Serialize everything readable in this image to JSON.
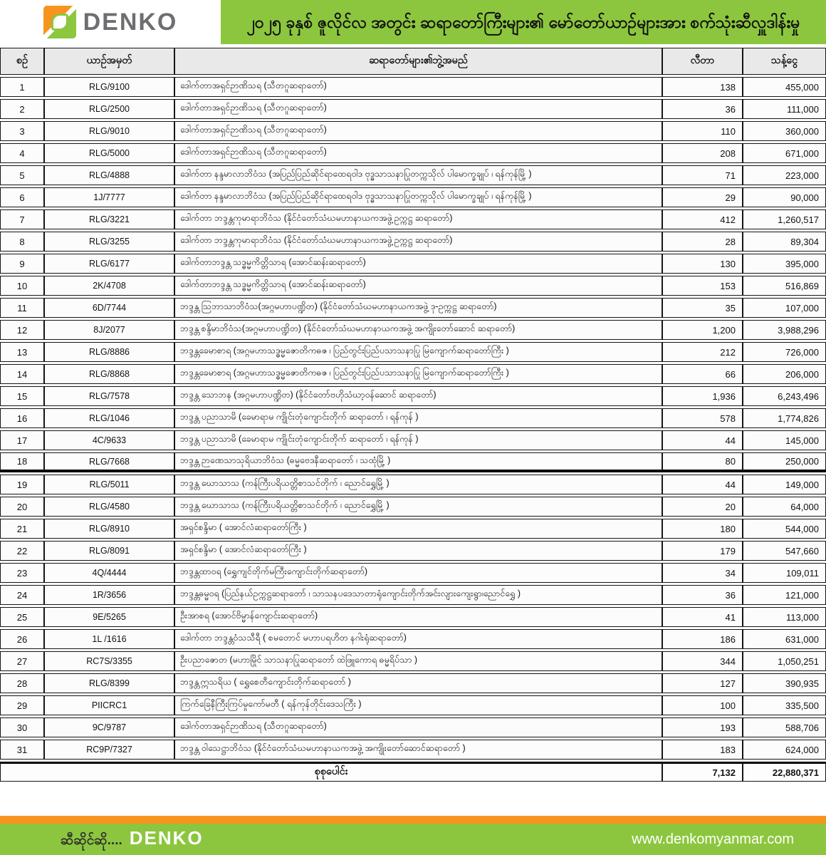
{
  "header": {
    "brand": "DENKO",
    "title": "၂၀၂၅ ခုနှစ် ဇူလိုင်လ အတွင်း ဆရာတော်ကြီးများ၏ မော်တော်ယာဉ်များအား စက်သုံးဆီလှူဒါန်းမှု"
  },
  "table": {
    "columns": {
      "no": "စဉ်",
      "plate": "ယာဉ်အမှတ်",
      "name": "ဆရာတော်များ၏ဘွဲ့အမည်",
      "liters": "လီတာ",
      "amount": "သန့်ငွေ"
    },
    "rows": [
      {
        "no": "1",
        "plate": "RLG/9100",
        "name": "ဒေါက်တာအရှင်ဉာဏိသရ (သီတဂူဆရာတော်)",
        "liters": "138",
        "amount": "455,000"
      },
      {
        "no": "2",
        "plate": "RLG/2500",
        "name": "ဒေါက်တာအရှင်ဉာဏိသရ (သီတဂူဆရာတော်)",
        "liters": "36",
        "amount": "111,000"
      },
      {
        "no": "3",
        "plate": "RLG/9010",
        "name": "ဒေါက်တာအရှင်ဉာဏိသရ (သီတဂူဆရာတော်)",
        "liters": "110",
        "amount": "360,000"
      },
      {
        "no": "4",
        "plate": "RLG/5000",
        "name": "ဒေါက်တာအရှင်ဉာဏိသရ (သီတဂူဆရာတော်)",
        "liters": "208",
        "amount": "671,000"
      },
      {
        "no": "5",
        "plate": "RLG/4888",
        "name": "ဒေါက်တာ နန္ဒမာလာဘိဝံသ (အပြည်ပြည်ဆိုင်ရာထေရဝါဒ ဗုဒ္ဓသာသနာပြုတက္ကသိုလ် ပါမောက္ခချုပ် ၊ ရန်ကုန်မြို့ )",
        "liters": "71",
        "amount": "223,000"
      },
      {
        "no": "6",
        "plate": "1J/7777",
        "name": "ဒေါက်တာ နန္ဒမာလာဘိဝံသ (အပြည်ပြည်ဆိုင်ရာထေရဝါဒ ဗုဒ္ဓသာသနာပြုတက္ကသိုလ် ပါမောက္ခချုပ် ၊ ရန်ကုန်မြို့ )",
        "liters": "29",
        "amount": "90,000"
      },
      {
        "no": "7",
        "plate": "RLG/3221",
        "name": "ဒေါက်တာ ဘဒ္ဒန္တကုမာရာဘိဝံသ (နိုင်ငံတော်သံဃမဟာနာယကအဖွဲ့ဥက္ကဋ္ဌ ဆရာတော်)",
        "liters": "412",
        "amount": "1,260,517"
      },
      {
        "no": "8",
        "plate": "RLG/3255",
        "name": "ဒေါက်တာ ဘဒ္ဒန္တကုမာရာဘိဝံသ (နိုင်ငံတော်သံဃမဟာနာယကအဖွဲ့ဥက္ကဋ္ဌ ဆရာတော်)",
        "liters": "28",
        "amount": "89,304"
      },
      {
        "no": "9",
        "plate": "RLG/6177",
        "name": "ဒေါက်တာဘဒ္ဒန္တ သဒ္ဓမ္မကိတ္တိသာရ (အောင်ဆန်းဆရာတော်)",
        "liters": "130",
        "amount": "395,000"
      },
      {
        "no": "10",
        "plate": "2K/4708",
        "name": "ဒေါက်တာဘဒ္ဒန္တ သဒ္ဓမ္မကိတ္တိသာရ (အောင်ဆန်းဆရာတော်)",
        "liters": "153",
        "amount": "516,869"
      },
      {
        "no": "11",
        "plate": "6D/7744",
        "name": "ဘဒ္ဒန္တ ဩဘာသာဘိဝံသ(အဂ္ဂမဟာပဏ္ဍိတ) (နိုင်ငံတော်သံဃမဟာနာယကအဖွဲ့ ဒု-ဥက္ကဋ္ဌ ဆရာတော်)",
        "liters": "35",
        "amount": "107,000"
      },
      {
        "no": "12",
        "plate": "8J/2077",
        "name": "ဘဒ္ဒန္တ စန္ဒိမာဘိဝံသ(အဂ္ဂမဟာပဏ္ဍိတ) (နိုင်ငံတော်သံဃမဟာနာယကအဖွဲ့ အကျိုးတော်ဆောင် ဆရာတော်)",
        "liters": "1,200",
        "amount": "3,988,296"
      },
      {
        "no": "13",
        "plate": "RLG/8886",
        "name": "ဘဒ္ဒန္တခေမာစာရ (အဂ္ဂမဟာသဒ္ဓမ္မဇောတိကဓဇ ၊ ပြည်တွင်းပြည်ပသာသနာပြု မြကျောက်ဆရာတော်ကြီး )",
        "liters": "212",
        "amount": "726,000"
      },
      {
        "no": "14",
        "plate": "RLG/8868",
        "name": "ဘဒ္ဒန္တခေမာစာရ (အဂ္ဂမဟာသဒ္ဓမ္မဇောတိကဓဇ ၊ ပြည်တွင်းပြည်ပသာသနာပြု မြကျောက်ဆရာတော်ကြီး )",
        "liters": "66",
        "amount": "206,000"
      },
      {
        "no": "15",
        "plate": "RLG/7578",
        "name": "ဘဒ္ဒန္တ သောဘန (အဂ္ဂမဟာပဏ္ဍိတ) (နိုင်ငံတော်ဗဟိုသံဃာ့ဝန်ဆောင် ဆရာတော်)",
        "liters": "1,936",
        "amount": "6,243,496"
      },
      {
        "no": "16",
        "plate": "RLG/1046",
        "name": "ဘဒ္ဒန္တ ပညာသာမိ (ခေမာရာမ ကျိုင်းတုံကျောင်းတိုက် ဆရာတော် ၊ ရန်ကုန် )",
        "liters": "578",
        "amount": "1,774,826"
      },
      {
        "no": "17",
        "plate": "4C/9633",
        "name": "ဘဒ္ဒန္တ ပညာသာမိ (ခေမာရာမ ကျိုင်းတုံကျောင်းတိုက် ဆရာတော် ၊ ရန်ကုန် )",
        "liters": "44",
        "amount": "145,000"
      },
      {
        "no": "18",
        "plate": "RLG/7668",
        "name": "ဘဒ္ဒန္တ ဉာဏေသာသုရိယာဘိဝံသ (ဓမ္မဗေဒနီဆရာတော် ၊ သထုံမြို့ )",
        "liters": "80",
        "amount": "250,000"
      },
      {
        "no": "19",
        "plate": "RLG/5011",
        "name": "ဘဒ္ဒန္တ ဃောသာသ (ကန်ကြီးပရိယတ္တိစာသင်တိုက် ၊ ညောင်ရွှေမြို့ )",
        "liters": "44",
        "amount": "149,000"
      },
      {
        "no": "20",
        "plate": "RLG/4580",
        "name": "ဘဒ္ဒန္တ ဃောသာသ (ကန်ကြီးပရိယတ္တိစာသင်တိုက် ၊ ညောင်ရွှေမြို့ )",
        "liters": "20",
        "amount": "64,000"
      },
      {
        "no": "21",
        "plate": "RLG/8910",
        "name": "အရှင်စန္ဒိမာ ( အောင်လံဆရာတော်ကြီး )",
        "liters": "180",
        "amount": "544,000"
      },
      {
        "no": "22",
        "plate": "RLG/8091",
        "name": "အရှင်စန္ဒိမာ ( အောင်လံဆရာတော်ကြီး )",
        "liters": "179",
        "amount": "547,660"
      },
      {
        "no": "23",
        "plate": "4Q/4444",
        "name": "ဘဒ္ဒန္တထာဝရ (ရွှေကျင်တိုက်မကြီးကျောင်းတိုက်ဆရာတော်)",
        "liters": "34",
        "amount": "109,011"
      },
      {
        "no": "24",
        "plate": "1R/3656",
        "name": "ဘဒ္ဒန္တဓမ္မဝရ (ပြည်နယ်ဥက္ကဋ္ဌဆရာတော် ၊ သာသနပဒေသာတာရုံကျောင်းတိုက်အင်းလျားကျေးရွာ၊ညောင်ရွှေ )",
        "liters": "36",
        "amount": "121,000"
      },
      {
        "no": "25",
        "plate": "9E/5265",
        "name": "ဦးအာစရ (အောင်ဗိမ္မာန်ကျောင်းဆရာတော်)",
        "liters": "41",
        "amount": "113,000"
      },
      {
        "no": "26",
        "plate": "1L /1616",
        "name": "ဒေါက်တာ ဘဒ္ဒန္တဝံသသီရီ ( စမတောင် မဟာပရဟိတ နဂါးရုံဆရာတော်)",
        "liters": "186",
        "amount": "631,000"
      },
      {
        "no": "27",
        "plate": "RC7S/3355",
        "name": "ဦးပညာဇောတ (မဟာမြိုင် သာသနာပြုဆရာတော် ထဲဖြူကောရ ဓမ္မရိပ်သာ )",
        "liters": "344",
        "amount": "1,050,251"
      },
      {
        "no": "28",
        "plate": "RLG/8399",
        "name": "ဘဒ္ဒန္တဣသရိယ ( ရွှေစေတီကျောင်းတိုက်ဆရာတော် )",
        "liters": "127",
        "amount": "390,935"
      },
      {
        "no": "29",
        "plate": "PIICRC1",
        "name": "ကြက်ခြေနီကြီးကြပ်မှုကော်မတီ ( ရန်ကုန်တိုင်းဒေသကြီး )",
        "liters": "100",
        "amount": "335,500"
      },
      {
        "no": "30",
        "plate": "9C/9787",
        "name": "ဒေါက်တာအရှင်ဉာဏိသရ (သီတဂူဆရာတော်)",
        "liters": "193",
        "amount": "588,706"
      },
      {
        "no": "31",
        "plate": "RC9P/7327",
        "name": "ဘဒ္ဒန္တ ဝါသေဋ္ဌာဘိဝံသ (နိုင်ငံတော်သံဃမဟာနာယကအဖွဲ့ အကျိုးတော်ဆောင်ဆရာတော် )",
        "liters": "183",
        "amount": "624,000"
      }
    ],
    "total": {
      "label": "စုစုပေါင်း",
      "liters": "7,132",
      "amount": "22,880,371"
    }
  },
  "footer": {
    "tagline": "ဆီဆိုင်ဆို....",
    "brand": "DENKO",
    "website": "www.denkomyanmar.com"
  },
  "colors": {
    "green": "#8CC63E",
    "orange": "#F7941E",
    "brand_gray": "#6d6e71",
    "header_gray": "#e9e9e9"
  }
}
